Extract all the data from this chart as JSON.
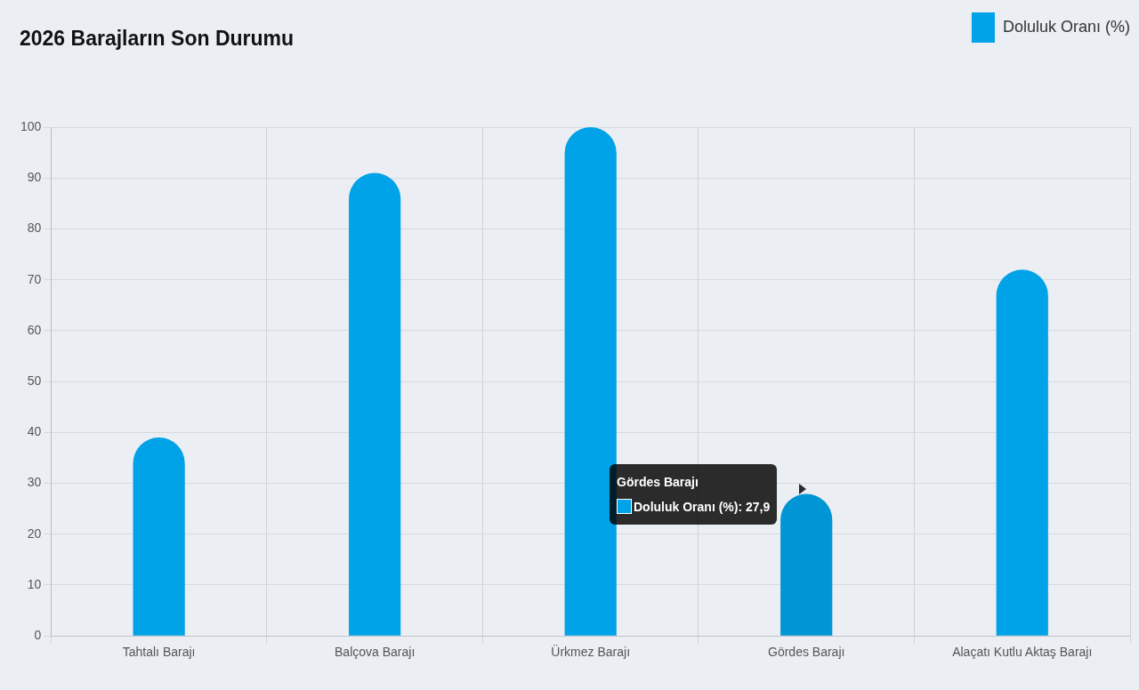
{
  "chart_data": {
    "type": "bar",
    "title": "2026 Barajların Son Durumu",
    "categories": [
      "Tahtalı Barajı",
      "Balçova Barajı",
      "Ürkmez Barajı",
      "Gördes Barajı",
      "Alaçatı Kutlu Aktaş Barajı"
    ],
    "series": [
      {
        "name": "Doluluk Oranı (%)",
        "color": "#00a2e8",
        "colors": [
          "#00a2e8",
          "#00a2e8",
          "#00a2e8",
          "#0095d4",
          "#00a2e8"
        ],
        "values": [
          39,
          91,
          100,
          27.9,
          72
        ]
      }
    ],
    "ylim": [
      0,
      100
    ],
    "yticks": [
      0,
      10,
      20,
      30,
      40,
      50,
      60,
      70,
      80,
      90,
      100
    ],
    "grid": true,
    "legend": "top right",
    "annotations": [
      "Gördes Barajı",
      "Doluluk Oranı (%): 27,9"
    ]
  }
}
